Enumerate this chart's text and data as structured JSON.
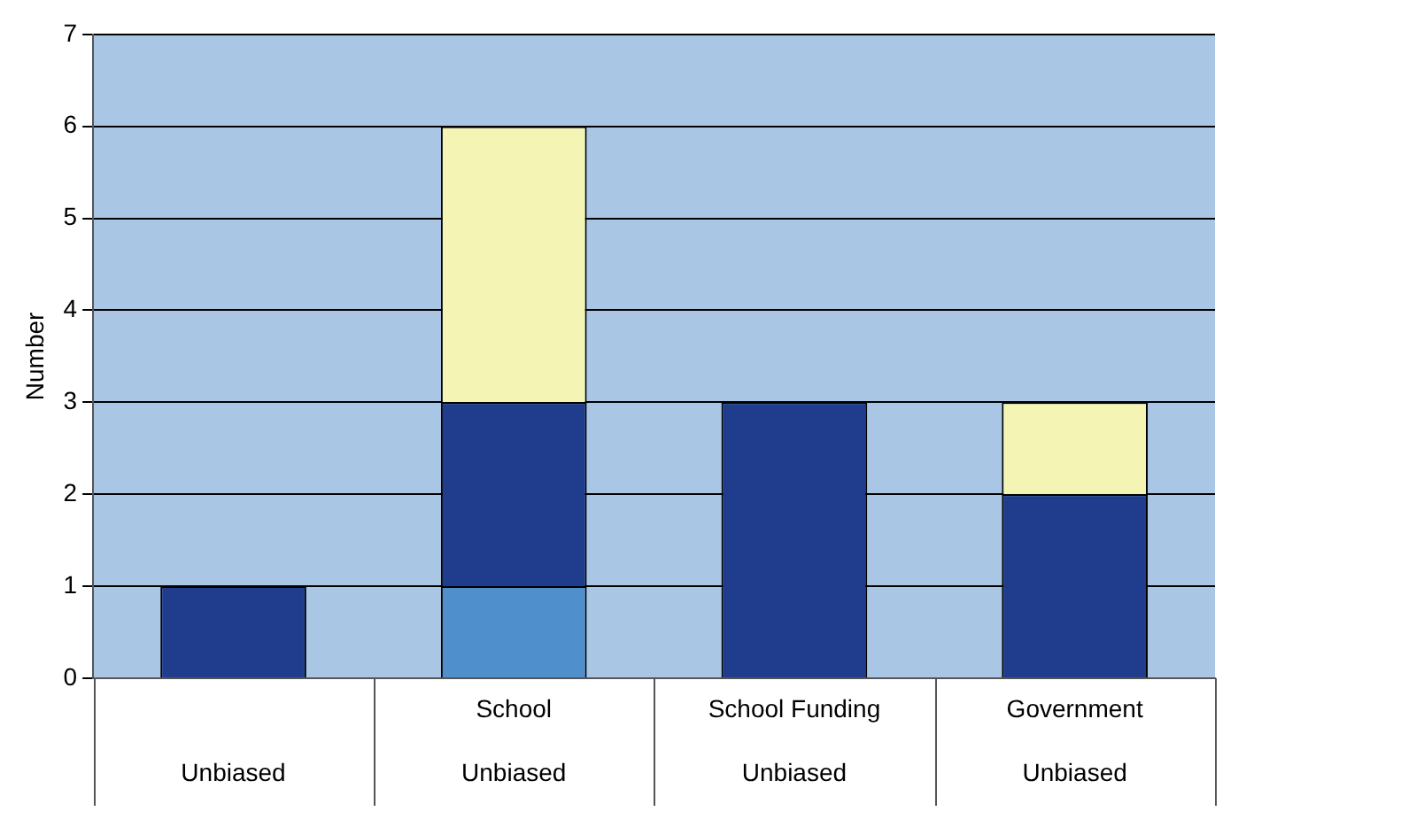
{
  "chart_data": {
    "type": "bar",
    "stacked": true,
    "ylabel": "Number",
    "categories": [
      null,
      "School",
      "School Funding",
      "Government"
    ],
    "annotations": [
      "Unbiased",
      "Unbiased",
      "Unbiased",
      "Unbiased"
    ],
    "series": [
      {
        "color": "#4f8fcc",
        "values": [
          0,
          1,
          0,
          0
        ]
      },
      {
        "color": "#1f3d8c",
        "values": [
          1,
          2,
          3,
          2
        ]
      },
      {
        "color": "#f4f4b4",
        "values": [
          0,
          3,
          0,
          1
        ]
      }
    ],
    "ylim": [
      0,
      7
    ],
    "yticks": [
      0,
      1,
      2,
      3,
      4,
      5,
      6,
      7
    ],
    "grid": "y",
    "legend": false
  }
}
